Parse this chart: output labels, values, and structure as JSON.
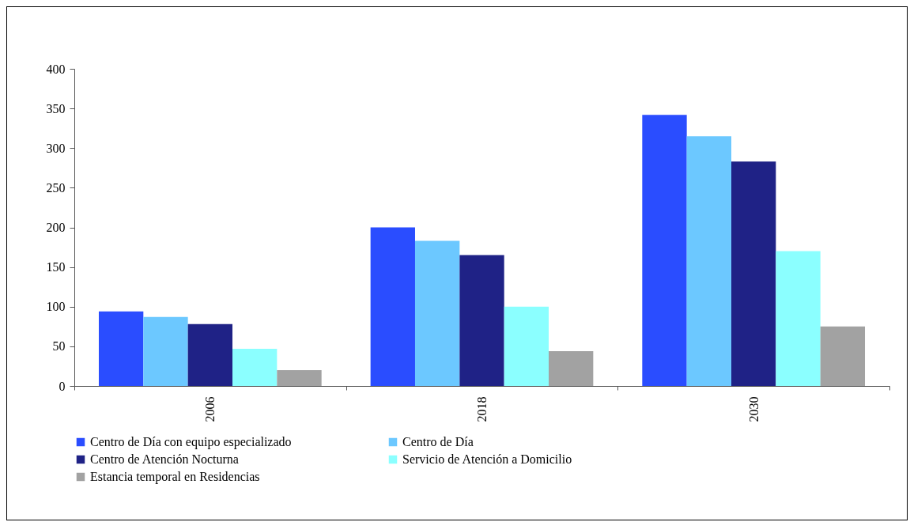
{
  "chart_data": {
    "type": "bar",
    "categories": [
      "2006",
      "2018",
      "2030"
    ],
    "series": [
      {
        "name": "Centro de Día con equipo especializado",
        "color": "#2a4dff",
        "values": [
          94,
          200,
          342
        ]
      },
      {
        "name": "Centro de Día",
        "color": "#6cc8ff",
        "values": [
          87,
          183,
          315
        ]
      },
      {
        "name": "Centro de Atención Nocturna",
        "color": "#1f2286",
        "values": [
          78,
          165,
          283
        ]
      },
      {
        "name": "Servicio de Atención a Domicilio",
        "color": "#8bffff",
        "values": [
          47,
          100,
          170
        ]
      },
      {
        "name": "Estancia temporal en Residencias",
        "color": "#a2a2a2",
        "values": [
          20,
          44,
          75
        ]
      }
    ],
    "ylim": [
      0,
      400
    ],
    "yticks": [
      0,
      50,
      100,
      150,
      200,
      250,
      300,
      350,
      400
    ],
    "grid": false,
    "legend": "bottom"
  }
}
